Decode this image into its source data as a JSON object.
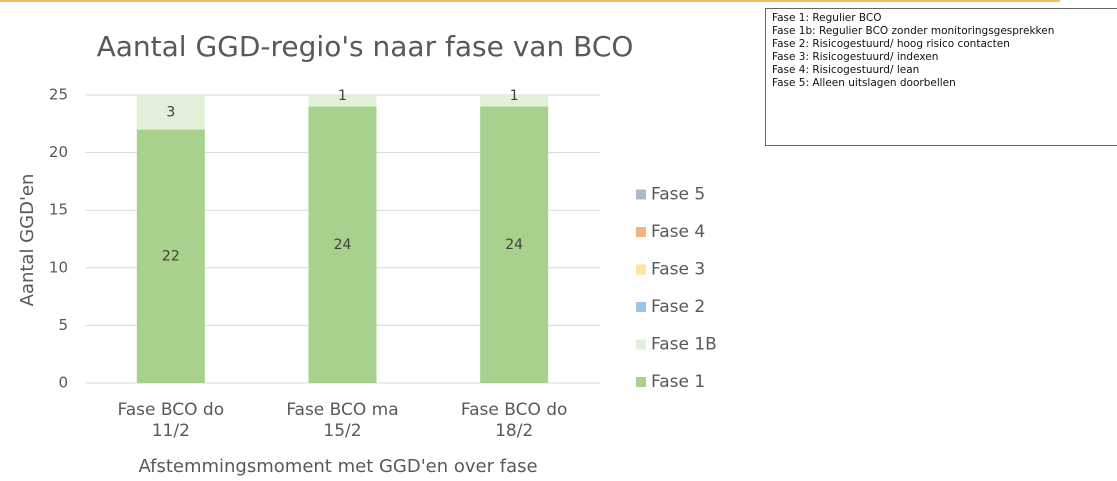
{
  "chart_data": {
    "type": "stacked_bar",
    "title": "Aantal GGD-regio's naar fase van BCO",
    "x_label": "Afstemmingsmoment met GGD'en over fase",
    "y_label": "Aantal GGD'en",
    "categories": [
      "Fase BCO do 11/2",
      "Fase BCO ma 15/2",
      "Fase BCO do 18/2"
    ],
    "series": [
      {
        "name": "Fase 1",
        "color": "#a9d18e",
        "values": [
          22,
          24,
          24
        ]
      },
      {
        "name": "Fase 1B",
        "color": "#e2f0d9",
        "values": [
          3,
          1,
          1
        ]
      },
      {
        "name": "Fase 2",
        "color": "#9dc3e6",
        "values": [
          0,
          0,
          0
        ]
      },
      {
        "name": "Fase 3",
        "color": "#ffe699",
        "values": [
          0,
          0,
          0
        ]
      },
      {
        "name": "Fase 4",
        "color": "#f4b183",
        "values": [
          0,
          0,
          0
        ]
      },
      {
        "name": "Fase 5",
        "color": "#adb9ca",
        "values": [
          0,
          0,
          0
        ]
      }
    ],
    "ylim": [
      0,
      25
    ],
    "yticks": [
      0,
      5,
      10,
      15,
      20,
      25
    ],
    "grid": true,
    "legend": "right"
  },
  "notes_box": {
    "lines": [
      "Fase 1: Regulier BCO",
      "Fase 1b: Regulier BCO zonder monitoringsgesprekken",
      "Fase 2: Risicogestuurd/ hoog risico contacten",
      "Fase 3: Risicogestuurd/ indexen",
      "Fase 4: Risicogestuurd/ lean",
      "Fase 5: Alleen uitslagen doorbellen"
    ]
  }
}
